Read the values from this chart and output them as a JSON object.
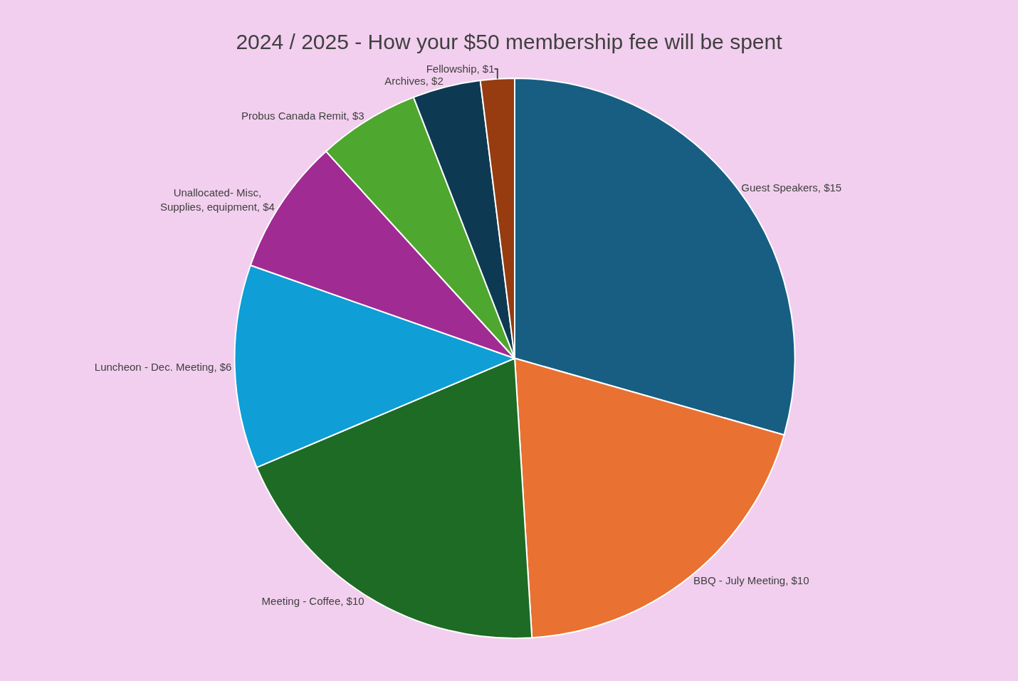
{
  "chart_data": {
    "type": "pie",
    "title": "2024 / 2025 - How your $50 membership fee will be spent",
    "categories": [
      "Guest Speakers",
      "BBQ - July Meeting",
      "Meeting - Coffee",
      "Luncheon - Dec. Meeting",
      "Unallocated- Misc, Supplies, equipment",
      "Probus Canada Remit",
      "Archives",
      "Fellowship"
    ],
    "values": [
      15,
      10,
      10,
      6,
      4,
      3,
      2,
      1
    ],
    "value_labels": [
      "$15",
      "$10",
      "$10",
      "$6",
      "$4",
      "$3",
      "$2",
      "$1"
    ],
    "colors": [
      "#175e82",
      "#e97132",
      "#1d6b24",
      "#0f9ed5",
      "#a02b93",
      "#4ea72e",
      "#0d3a52",
      "#963c10"
    ],
    "legend": false
  }
}
